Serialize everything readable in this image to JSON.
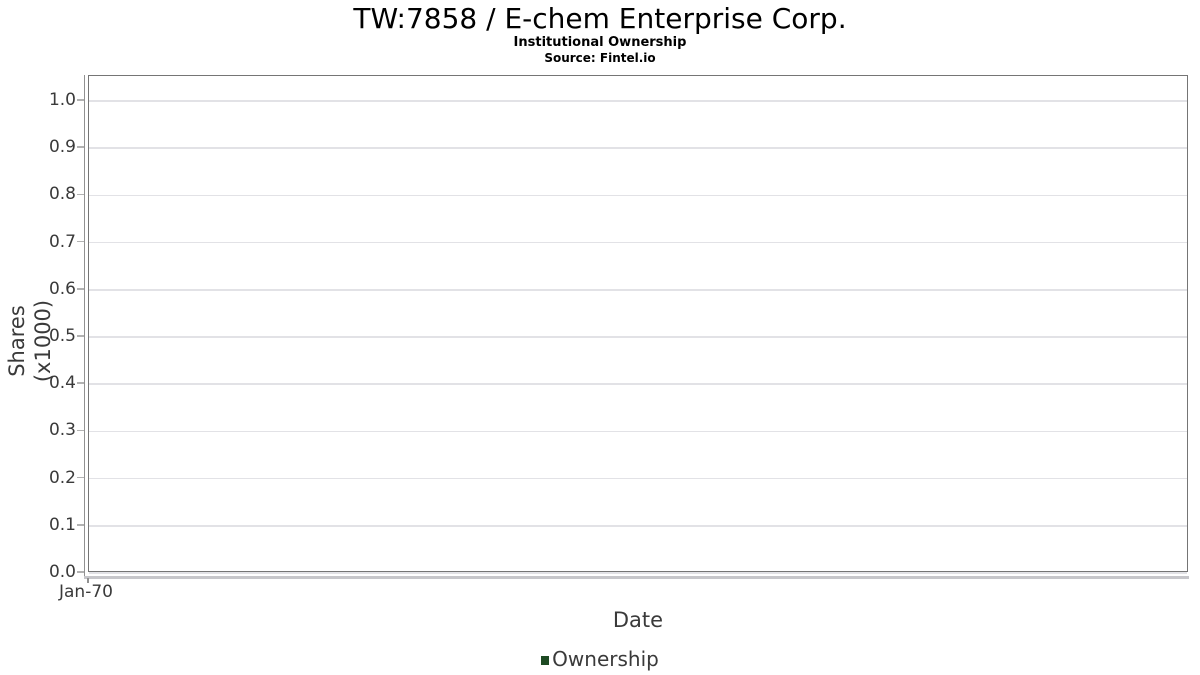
{
  "header": {
    "title": "TW:7858 / E-chem Enterprise Corp.",
    "subtitle": "Institutional Ownership",
    "source": "Source: Fintel.io"
  },
  "axes": {
    "x_title": "Date",
    "y_title": "Shares (x1000)",
    "x_tick_label": "Jan-70"
  },
  "legend": {
    "label": "Ownership",
    "marker_color": "#1d4a23"
  },
  "colors": {
    "grid": "#e2e2e6",
    "plot_border": "#757575",
    "axis_line": "#919191",
    "tick_mark": "#b2b2b2",
    "label_text": "#3a3a3a",
    "title_text": "#000000",
    "series_green": "#1d4a23"
  },
  "chart_data": {
    "type": "line",
    "title": "TW:7858 / E-chem Enterprise Corp.",
    "subtitle": "Institutional Ownership",
    "source": "Source: Fintel.io",
    "xlabel": "Date",
    "ylabel": "Shares (x1000)",
    "x_tick_labels": [
      "Jan-70"
    ],
    "y_ticks": [
      0.0,
      0.1,
      0.2,
      0.3,
      0.4,
      0.5,
      0.6,
      0.7,
      0.8,
      0.9,
      1.0
    ],
    "ylim": [
      0,
      1.053
    ],
    "grid": "horizontal",
    "legend_position": "bottom",
    "series": [
      {
        "name": "Ownership",
        "color": "#1d4a23",
        "x": [],
        "values": []
      }
    ]
  }
}
